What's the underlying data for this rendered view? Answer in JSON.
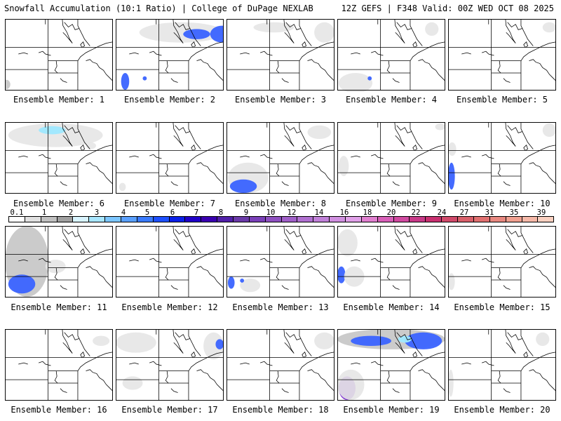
{
  "header": {
    "title": "Snowfall Accumulation (10:1 Ratio) | College of DuPage NEXLAB",
    "run": "12Z GEFS | F348 Valid: 00Z WED OCT 08 2025"
  },
  "members": [
    {
      "label": "Ensemble Member: 1",
      "snow": [
        [
          "gray",
          -4,
          90,
          12,
          14
        ]
      ]
    },
    {
      "label": "Ensemble Member: 2",
      "snow": [
        [
          "lgray",
          35,
          5,
          125,
          30
        ],
        [
          "blue",
          140,
          10,
          35,
          25
        ],
        [
          "blue",
          100,
          15,
          40,
          15
        ],
        [
          "blue",
          8,
          80,
          12,
          25
        ],
        [
          "blue",
          40,
          85,
          6,
          6
        ]
      ]
    },
    {
      "label": "Ensemble Member: 3",
      "snow": [
        [
          "lgray",
          40,
          5,
          60,
          15
        ],
        [
          "lgray",
          130,
          5,
          30,
          30
        ]
      ]
    },
    {
      "label": "Ensemble Member: 4",
      "snow": [
        [
          "lgray",
          2,
          80,
          50,
          30
        ],
        [
          "blue",
          45,
          85,
          6,
          6
        ],
        [
          "lgray",
          130,
          5,
          20,
          20
        ]
      ]
    },
    {
      "label": "Ensemble Member: 5",
      "snow": [
        [
          "lgray",
          140,
          5,
          20,
          15
        ]
      ]
    },
    {
      "label": "Ensemble Member: 6",
      "snow": [
        [
          "lgray",
          5,
          2,
          140,
          35
        ],
        [
          "cyan",
          50,
          6,
          40,
          12
        ],
        [
          "lgray",
          120,
          30,
          15,
          10
        ]
      ]
    },
    {
      "label": "Ensemble Member: 7",
      "snow": [
        [
          "lgray",
          5,
          90,
          10,
          12
        ]
      ]
    },
    {
      "label": "Ensemble Member: 8",
      "snow": [
        [
          "lgray",
          2,
          60,
          60,
          45
        ],
        [
          "blue",
          5,
          85,
          40,
          20
        ],
        [
          "lgray",
          120,
          5,
          35,
          20
        ]
      ]
    },
    {
      "label": "Ensemble Member: 9",
      "snow": [
        [
          "lgray",
          2,
          50,
          15,
          30
        ],
        [
          "lgray",
          145,
          2,
          15,
          10
        ]
      ]
    },
    {
      "label": "Ensemble Member: 10",
      "snow": [
        [
          "blue",
          0,
          60,
          10,
          40
        ],
        [
          "lgray",
          0,
          30,
          12,
          20
        ],
        [
          "lgray",
          140,
          2,
          20,
          20
        ]
      ]
    },
    {
      "label": "Ensemble Member: 11",
      "snow": [
        [
          "gray",
          0,
          0,
          65,
          105
        ],
        [
          "blue",
          5,
          72,
          40,
          28
        ],
        [
          "lgray",
          60,
          50,
          30,
          20
        ]
      ]
    },
    {
      "label": "Ensemble Member: 12",
      "snow": []
    },
    {
      "label": "Ensemble Member: 13",
      "snow": [
        [
          "blue",
          2,
          75,
          10,
          18
        ],
        [
          "lgray",
          20,
          78,
          30,
          20
        ],
        [
          "blue",
          20,
          78,
          6,
          6
        ]
      ]
    },
    {
      "label": "Ensemble Member: 14",
      "snow": [
        [
          "lgray",
          0,
          5,
          30,
          40
        ],
        [
          "blue",
          0,
          60,
          12,
          25
        ],
        [
          "lgray",
          10,
          60,
          30,
          30
        ]
      ]
    },
    {
      "label": "Ensemble Member: 15",
      "snow": [
        [
          "lgray",
          0,
          70,
          10,
          25
        ]
      ]
    },
    {
      "label": "Ensemble Member: 16",
      "snow": [
        [
          "lgray",
          130,
          10,
          25,
          15
        ]
      ]
    },
    {
      "label": "Ensemble Member: 17",
      "snow": [
        [
          "lgray",
          0,
          5,
          60,
          30
        ],
        [
          "lgray",
          130,
          5,
          30,
          40
        ],
        [
          "blue",
          148,
          15,
          12,
          15
        ],
        [
          "lgray",
          10,
          70,
          30,
          20
        ]
      ]
    },
    {
      "label": "Ensemble Member: 18",
      "snow": [
        [
          "lgray",
          130,
          5,
          30,
          25
        ]
      ]
    },
    {
      "label": "Ensemble Member: 19",
      "snow": [
        [
          "gray",
          0,
          0,
          160,
          30
        ],
        [
          "blue",
          20,
          10,
          60,
          15
        ],
        [
          "blue",
          100,
          5,
          55,
          25
        ],
        [
          "cyan",
          90,
          10,
          20,
          10
        ],
        [
          "purple",
          2,
          70,
          25,
          35
        ],
        [
          "lgray",
          0,
          60,
          40,
          45
        ]
      ]
    },
    {
      "label": "Ensemble Member: 20",
      "snow": [
        [
          "lgray",
          0,
          60,
          8,
          40
        ],
        [
          "lgray",
          130,
          5,
          20,
          20
        ]
      ]
    }
  ],
  "legend": {
    "labels": [
      "0.1",
      "1",
      "2",
      "3",
      "4",
      "5",
      "6",
      "7",
      "8",
      "9",
      "10",
      "12",
      "14",
      "16",
      "18",
      "20",
      "22",
      "24",
      "27",
      "31",
      "35",
      "39"
    ],
    "colors": [
      "#ffffff",
      "#e0e0e0",
      "#c0c0c0",
      "#a0a0a0",
      "#d8f4ff",
      "#a8e6ff",
      "#7cc6ff",
      "#5aa0ff",
      "#3a7bff",
      "#1e50ff",
      "#0a20e8",
      "#2000c8",
      "#3a00b0",
      "#5020a8",
      "#6a3aa8",
      "#7a40b8",
      "#8e50c0",
      "#a060c8",
      "#b070d0",
      "#c080d8",
      "#d090e0",
      "#e0a0e8",
      "#e07fcf",
      "#d860b8",
      "#d04aa0",
      "#c83a88",
      "#c83070",
      "#d04a6a",
      "#d8606a",
      "#e07070",
      "#e88880",
      "#f0a090",
      "#f5b8a8",
      "#fad0c0"
    ],
    "snow_colors": {
      "lgray": "#e6e6e6",
      "gray": "#c8c8c8",
      "cyan": "#9ee8ff",
      "blue": "#3a63ff",
      "purple": "#7a2ad0"
    }
  }
}
